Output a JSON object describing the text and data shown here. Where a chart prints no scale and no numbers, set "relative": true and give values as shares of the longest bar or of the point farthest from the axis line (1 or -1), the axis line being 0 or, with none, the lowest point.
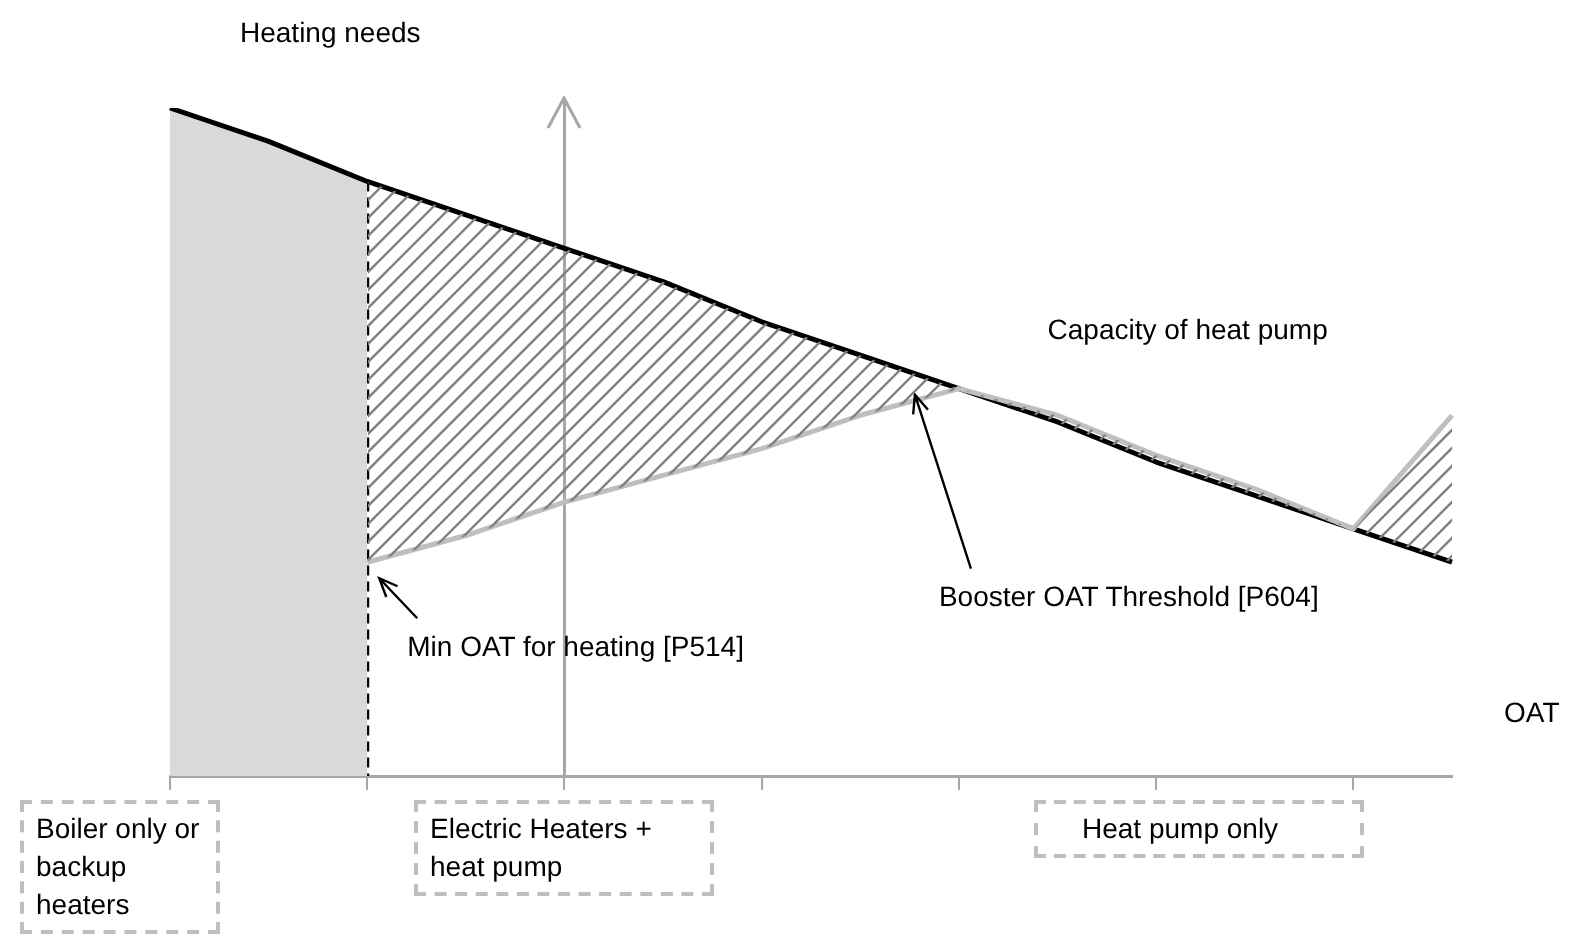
{
  "chart_data": {
    "type": "line",
    "relative": true,
    "ylabel": "Heating needs",
    "xlabel": "OAT",
    "categories": [
      null,
      null,
      null,
      null,
      null,
      null,
      null,
      null,
      null,
      null,
      null,
      null,
      null,
      null
    ],
    "series": [
      {
        "type": "area",
        "color": "#d9d9d9",
        "values": [
          1,
          0.95,
          0.89,
          null,
          null,
          null,
          null,
          null,
          null,
          null,
          null,
          null,
          null,
          null
        ]
      },
      {
        "color": "#000000",
        "values": [
          1,
          0.95,
          0.89,
          0.84,
          0.79,
          0.74,
          0.68,
          0.63,
          0.58,
          0.53,
          0.47,
          0.42,
          0.37,
          0.32
        ]
      },
      {
        "name": "Capacity of heat pump",
        "color": "#bfbfbf",
        "values": [
          null,
          null,
          0.32,
          0.36,
          0.41,
          0.45,
          0.49,
          0.54,
          0.58,
          0.54,
          0.48,
          0.43,
          0.37,
          0.54
        ]
      }
    ],
    "annotations": [
      "Min OAT for heating [P514]",
      "Booster OAT Threshold [P604]",
      "Boiler only or backup heaters",
      "Electric Heaters + heat pump",
      "Heat pump only"
    ]
  }
}
